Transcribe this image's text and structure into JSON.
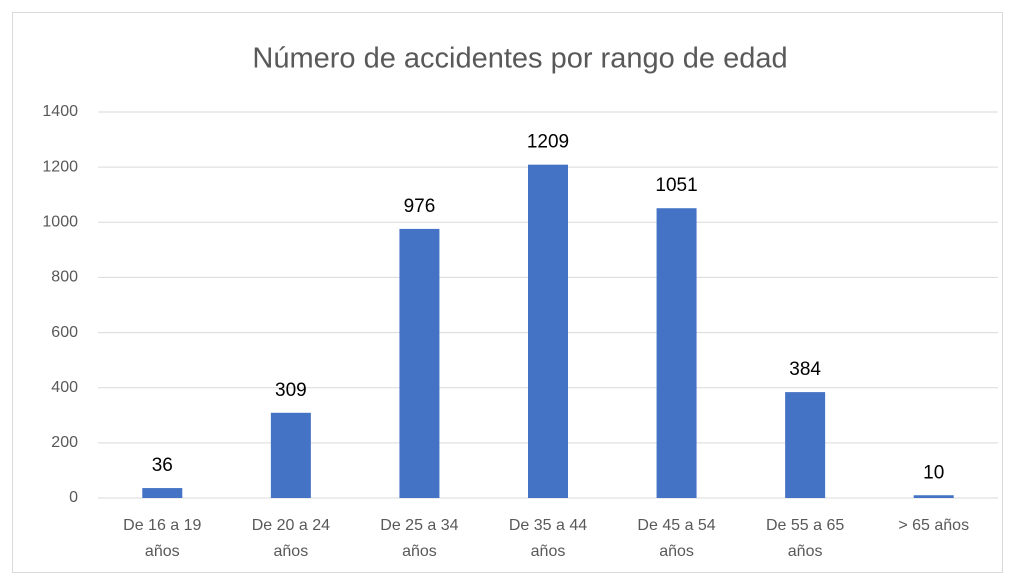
{
  "chart_data": {
    "type": "bar",
    "title": "Número de accidentes por rango de edad",
    "categories": [
      "De 16 a 19 años",
      "De 20 a 24 años",
      "De 25 a 34 años",
      "De 35 a 44 años",
      "De 45 a 54 años",
      "De 55 a 65 años",
      "> 65 años"
    ],
    "values": [
      36,
      309,
      976,
      1209,
      1051,
      384,
      10
    ],
    "color": "#4472c4",
    "ylim": [
      0,
      1400
    ],
    "yticks": [
      0,
      200,
      400,
      600,
      800,
      1000,
      1200,
      1400
    ],
    "grid": true
  }
}
